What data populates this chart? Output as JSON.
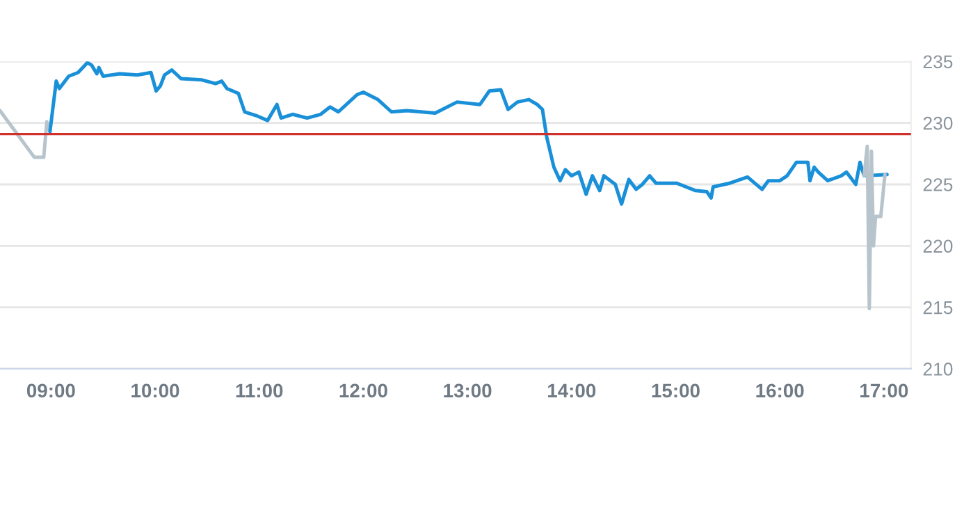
{
  "chart_data": {
    "type": "line",
    "series": [
      {
        "color": "#b8c4cc",
        "x": [
          8.51,
          8.84,
          8.93,
          8.96,
          8.99
        ],
        "values": [
          231.0,
          227.2,
          227.2,
          230.1,
          229.3
        ]
      },
      {
        "color": "#1a90d8",
        "x": [
          8.99,
          9.05,
          9.08,
          9.17,
          9.26,
          9.35,
          9.39,
          9.44,
          9.46,
          9.5,
          9.66,
          9.83,
          9.96,
          10.01,
          10.05,
          10.09,
          10.16,
          10.25,
          10.45,
          10.58,
          10.64,
          10.69,
          10.8,
          10.86,
          10.97,
          11.08,
          11.17,
          11.21,
          11.32,
          11.46,
          11.59,
          11.68,
          11.76,
          11.94,
          12.0,
          12.14,
          12.27,
          12.42,
          12.69,
          12.9,
          13.12,
          13.21,
          13.32,
          13.39,
          13.48,
          13.59,
          13.67,
          13.72,
          13.76,
          13.83,
          13.89,
          13.94,
          14.0,
          14.07,
          14.14,
          14.2,
          14.27,
          14.31,
          14.42,
          14.48,
          14.55,
          14.62,
          14.68,
          14.75,
          14.81,
          15.01,
          15.19,
          15.3,
          15.34,
          15.36,
          15.52,
          15.69,
          15.83,
          15.89,
          16.0,
          16.07,
          16.16,
          16.27,
          16.29,
          16.33,
          16.37,
          16.46,
          16.59,
          16.64,
          16.73,
          16.77,
          16.81,
          17.03
        ],
        "values": [
          229.3,
          233.4,
          232.8,
          233.8,
          234.1,
          234.9,
          234.7,
          234.0,
          234.5,
          233.8,
          234.0,
          233.9,
          234.1,
          232.6,
          233.0,
          233.9,
          234.3,
          233.6,
          233.5,
          233.2,
          233.4,
          232.8,
          232.4,
          230.9,
          230.6,
          230.2,
          231.5,
          230.4,
          230.7,
          230.4,
          230.7,
          231.3,
          230.9,
          232.3,
          232.5,
          231.9,
          230.9,
          231.0,
          230.8,
          231.7,
          231.5,
          232.6,
          232.7,
          231.1,
          231.7,
          231.9,
          231.5,
          231.1,
          228.9,
          226.4,
          225.3,
          226.2,
          225.7,
          226.0,
          224.2,
          225.7,
          224.5,
          225.7,
          225.0,
          223.4,
          225.4,
          224.6,
          225.0,
          225.7,
          225.1,
          225.1,
          224.5,
          224.4,
          223.9,
          224.8,
          225.1,
          225.6,
          224.6,
          225.3,
          225.3,
          225.7,
          226.8,
          226.8,
          225.3,
          226.4,
          226.0,
          225.3,
          225.7,
          226.0,
          225.0,
          226.8,
          225.7,
          225.8
        ]
      },
      {
        "color": "#b8c4cc",
        "x": [
          16.81,
          16.84,
          16.86,
          16.88,
          16.9,
          16.92,
          16.97,
          17.01
        ],
        "values": [
          225.7,
          228.1,
          214.9,
          227.7,
          220.0,
          222.4,
          222.4,
          225.8
        ]
      }
    ],
    "xlim": [
      8.51,
      17.26
    ],
    "xticks": [
      {
        "value": 9,
        "label": "09:00"
      },
      {
        "value": 10,
        "label": "10:00"
      },
      {
        "value": 11,
        "label": "11:00"
      },
      {
        "value": 12,
        "label": "12:00"
      },
      {
        "value": 13,
        "label": "13:00"
      },
      {
        "value": 14,
        "label": "14:00"
      },
      {
        "value": 15,
        "label": "15:00"
      },
      {
        "value": 16,
        "label": "16:00"
      },
      {
        "value": 17,
        "label": "17:00"
      }
    ],
    "ylim": [
      210,
      235
    ],
    "yticks": [
      210,
      215,
      220,
      225,
      230,
      235
    ],
    "grid": "y",
    "ref_lines": [
      {
        "axis": "y",
        "value": 229.1,
        "color": "#d0312d"
      }
    ],
    "legend": false
  }
}
